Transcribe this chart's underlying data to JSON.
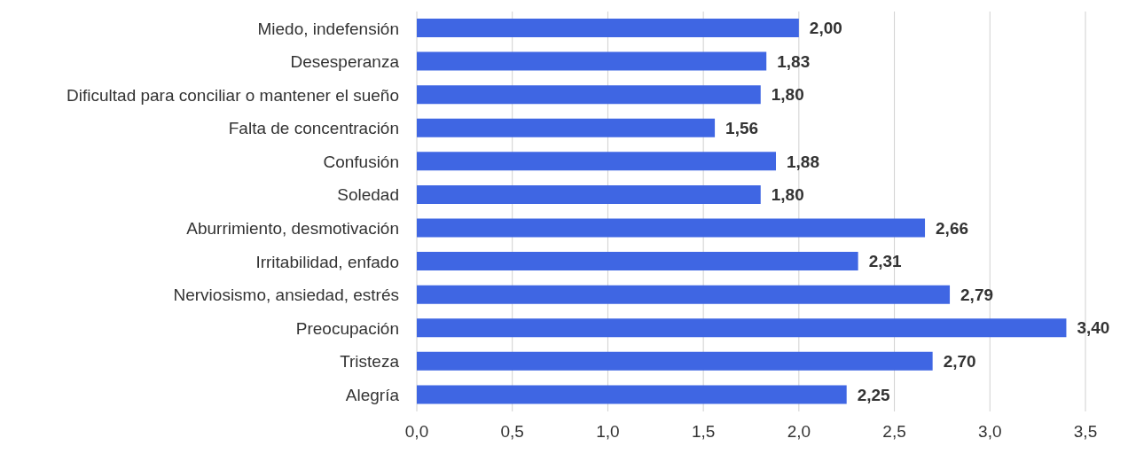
{
  "chart_data": {
    "type": "bar",
    "orientation": "horizontal",
    "categories": [
      "Miedo, indefensión",
      "Desesperanza",
      "Dificultad para conciliar o mantener el sueño",
      "Falta de concentración",
      "Confusión",
      "Soledad",
      "Aburrimiento, desmotivación",
      "Irritabilidad, enfado",
      "Nerviosismo, ansiedad, estrés",
      "Preocupación",
      "Tristeza",
      "Alegría"
    ],
    "values": [
      2.0,
      1.83,
      1.8,
      1.56,
      1.88,
      1.8,
      2.66,
      2.31,
      2.79,
      3.4,
      2.7,
      2.25
    ],
    "value_labels": [
      "2,00",
      "1,83",
      "1,80",
      "1,56",
      "1,88",
      "1,80",
      "2,66",
      "2,31",
      "2,79",
      "3,40",
      "2,70",
      "2,25"
    ],
    "color": "#3f66e3",
    "xlim": [
      0,
      3.5
    ],
    "xticks": [
      {
        "value": 0,
        "label": "0,0"
      },
      {
        "value": 0.5,
        "label": "0,5"
      },
      {
        "value": 1,
        "label": "1,0"
      },
      {
        "value": 1.5,
        "label": "1,5"
      },
      {
        "value": 2,
        "label": "2,0"
      },
      {
        "value": 2.5,
        "label": "2,5"
      },
      {
        "value": 3,
        "label": "3,0"
      },
      {
        "value": 3.5,
        "label": "3,5"
      }
    ],
    "grid": "x"
  }
}
